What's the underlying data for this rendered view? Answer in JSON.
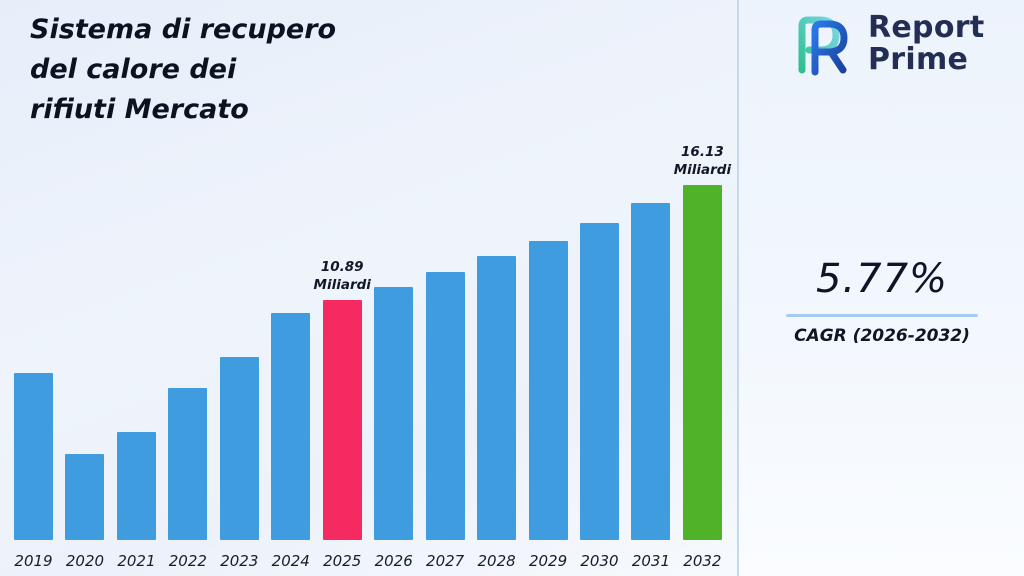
{
  "title": {
    "lines": [
      "Sistema di recupero",
      "del calore dei",
      "rifiuti Mercato"
    ]
  },
  "brand": {
    "logo_icon": "report-prime-logo",
    "line1": "Report",
    "line2": "Prime",
    "text_color": "#222e54",
    "logo_blue": "#1e63d6",
    "logo_teal": "#2fbf8f"
  },
  "cagr": {
    "value": "5.77%",
    "label": "CAGR (2026-2032)",
    "rule_color": "#a6cbf2"
  },
  "chart_data": {
    "type": "bar",
    "title": "Sistema di recupero del calore dei rifiuti Mercato",
    "xlabel": "",
    "ylabel": "Miliardi",
    "unit": "Miliardi",
    "ylim": [
      0,
      17
    ],
    "grid": false,
    "categories": [
      "2019",
      "2020",
      "2021",
      "2022",
      "2023",
      "2024",
      "2025",
      "2026",
      "2027",
      "2028",
      "2029",
      "2030",
      "2031",
      "2032"
    ],
    "values": [
      7.6,
      3.9,
      4.9,
      6.9,
      8.3,
      10.3,
      10.89,
      11.5,
      12.2,
      12.9,
      13.6,
      14.4,
      15.3,
      16.13
    ],
    "annotations": [
      {
        "year": "2025",
        "value": "10.89",
        "unit": "Miliardi"
      },
      {
        "year": "2032",
        "value": "16.13",
        "unit": "Miliardi"
      }
    ],
    "highlight_year": "2025",
    "final_year": "2032",
    "colors": {
      "default": "#3e9cdf",
      "highlight": "#f42a60",
      "final": "#4fb229"
    }
  }
}
